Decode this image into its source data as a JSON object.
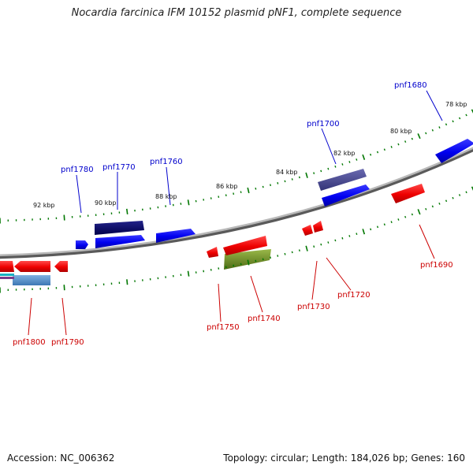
{
  "title": "Nocardia farcinica IFM 10152 plasmid pNF1, complete sequence",
  "footer": {
    "accession": "Accession: NC_006362",
    "summary": "Topology: circular; Length: 184,026 bp; Genes: 160"
  },
  "colors": {
    "forward_label": "#0000cc",
    "reverse_label": "#cc0000",
    "tick": "#007700",
    "backbone": "#8a8a8a"
  },
  "kbp_labels": [
    "78 kbp",
    "80 kbp",
    "82 kbp",
    "84 kbp",
    "86 kbp",
    "88 kbp",
    "90 kbp",
    "92 kbp"
  ],
  "gene_labels_forward": [
    "pnf1680",
    "pnf1700",
    "pnf1760",
    "pnf1770",
    "pnf1780"
  ],
  "gene_labels_reverse": [
    "pnf1690",
    "pnf1720",
    "pnf1730",
    "pnf1740",
    "pnf1750",
    "pnf1790",
    "pnf1800"
  ]
}
